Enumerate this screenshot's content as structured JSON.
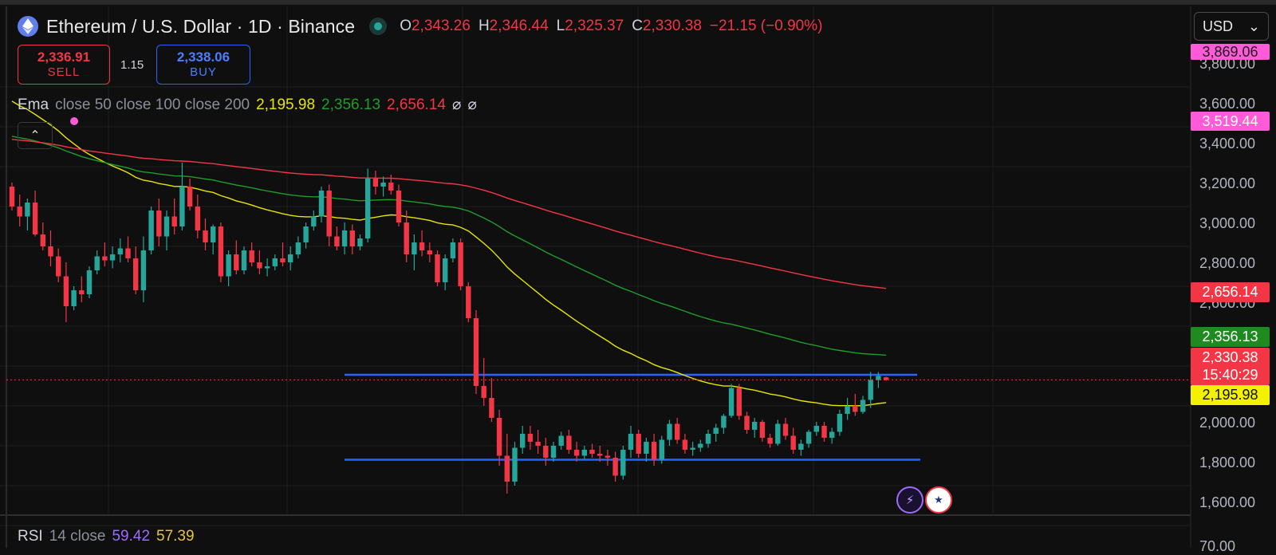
{
  "header": {
    "symbol_title": "Ethereum / U.S. Dollar · 1D · Binance",
    "ohlc": {
      "o_label": "O",
      "o_value": "2,343.26",
      "h_label": "H",
      "h_value": "2,346.44",
      "l_label": "L",
      "l_value": "2,325.37",
      "c_label": "C",
      "c_value": "2,330.38",
      "change": "−21.15 (−0.90%)"
    }
  },
  "trade": {
    "sell_price": "2,336.91",
    "sell_label": "SELL",
    "spread": "1.15",
    "buy_price": "2,338.06",
    "buy_label": "BUY"
  },
  "ema_legend": {
    "name": "Ema",
    "params": "close 50 close 100 close 200",
    "v50": "2,195.98",
    "v100": "2,356.13",
    "v200": "2,656.14",
    "symbol_a": "⌀",
    "symbol_b": "⌀"
  },
  "currency": {
    "selected": "USD",
    "arrow": "⌄"
  },
  "collapse_icon_glyph": "⌃",
  "price_axis": {
    "ticks": [
      "3,800.00",
      "3,600.00",
      "3,400.00",
      "3,200.00",
      "3,000.00",
      "2,800.00",
      "2,600.00",
      "2,000.00",
      "1,800.00",
      "1,600.00"
    ],
    "tags": {
      "high_alert": "3,869.06",
      "alert2": "3,519.44",
      "ema200": "2,656.14",
      "ema100": "2,356.13",
      "last_price": "2,330.38",
      "countdown": "15:40:29",
      "ema50": "2,195.98"
    },
    "rsi_tick_cut": "70.00"
  },
  "rsi_legend": {
    "name": "RSI",
    "params": "14 close",
    "v1": "59.42",
    "v2": "57.39"
  },
  "colors": {
    "up": "#26a69a",
    "down": "#f23645",
    "ema50": "#e6e600",
    "ema100": "#1f9d2a",
    "ema200": "#f23645",
    "level_lines": "#2962ff",
    "alert_tag": "#ff5ad7"
  },
  "icons": [
    "ethereum-icon",
    "market-status-icon",
    "chevron-up-icon",
    "chevron-down-icon",
    "ai-assistant-icon",
    "us-flag-icon"
  ],
  "chart_data": {
    "type": "candlestick",
    "ylim": [
      1500,
      3900
    ],
    "levels": [
      2356,
      1930
    ],
    "candles": [
      [
        3300,
        3320,
        3180,
        3200
      ],
      [
        3200,
        3260,
        3100,
        3150
      ],
      [
        3150,
        3240,
        3080,
        3220
      ],
      [
        3220,
        3280,
        3050,
        3060
      ],
      [
        3060,
        3120,
        2980,
        3000
      ],
      [
        3000,
        3080,
        2900,
        2950
      ],
      [
        2950,
        2990,
        2820,
        2850
      ],
      [
        2850,
        2920,
        2620,
        2700
      ],
      [
        2700,
        2800,
        2680,
        2780
      ],
      [
        2780,
        2850,
        2720,
        2760
      ],
      [
        2760,
        2900,
        2740,
        2880
      ],
      [
        2880,
        2980,
        2860,
        2950
      ],
      [
        2950,
        3020,
        2900,
        2930
      ],
      [
        2930,
        3000,
        2890,
        2960
      ],
      [
        2960,
        3040,
        2920,
        2990
      ],
      [
        2990,
        3050,
        2920,
        2940
      ],
      [
        2940,
        3000,
        2760,
        2780
      ],
      [
        2780,
        3050,
        2720,
        2980
      ],
      [
        2980,
        3200,
        2960,
        3180
      ],
      [
        3180,
        3240,
        3000,
        3050
      ],
      [
        3050,
        3180,
        2980,
        3150
      ],
      [
        3150,
        3240,
        3060,
        3100
      ],
      [
        3100,
        3420,
        3080,
        3300
      ],
      [
        3300,
        3340,
        3180,
        3200
      ],
      [
        3200,
        3260,
        3040,
        3080
      ],
      [
        3080,
        3140,
        2980,
        3020
      ],
      [
        3020,
        3110,
        2960,
        3100
      ],
      [
        3100,
        3120,
        2820,
        2850
      ],
      [
        2850,
        2980,
        2800,
        2960
      ],
      [
        2960,
        3030,
        2860,
        2880
      ],
      [
        2880,
        3000,
        2860,
        2980
      ],
      [
        2980,
        3020,
        2900,
        2920
      ],
      [
        2920,
        2980,
        2860,
        2890
      ],
      [
        2890,
        2940,
        2850,
        2900
      ],
      [
        2900,
        2960,
        2880,
        2940
      ],
      [
        2940,
        3020,
        2900,
        2920
      ],
      [
        2920,
        3000,
        2880,
        2960
      ],
      [
        2960,
        3050,
        2940,
        3020
      ],
      [
        3020,
        3120,
        2990,
        3100
      ],
      [
        3100,
        3180,
        3080,
        3150
      ],
      [
        3150,
        3300,
        3120,
        3280
      ],
      [
        3280,
        3310,
        3000,
        3050
      ],
      [
        3050,
        3100,
        2980,
        3000
      ],
      [
        3000,
        3120,
        2960,
        3080
      ],
      [
        3080,
        3110,
        2960,
        3000
      ],
      [
        3000,
        3060,
        2980,
        3040
      ],
      [
        3040,
        3390,
        3020,
        3340
      ],
      [
        3340,
        3380,
        3260,
        3300
      ],
      [
        3300,
        3350,
        3250,
        3320
      ],
      [
        3320,
        3360,
        3260,
        3280
      ],
      [
        3280,
        3310,
        3100,
        3120
      ],
      [
        3120,
        3180,
        2920,
        2960
      ],
      [
        2960,
        3060,
        2880,
        3020
      ],
      [
        3020,
        3080,
        2950,
        2980
      ],
      [
        2980,
        3020,
        2920,
        2960
      ],
      [
        2960,
        2980,
        2800,
        2820
      ],
      [
        2820,
        2960,
        2780,
        2940
      ],
      [
        2940,
        3040,
        2920,
        3020
      ],
      [
        3020,
        3040,
        2780,
        2800
      ],
      [
        2800,
        2820,
        2620,
        2640
      ],
      [
        2640,
        2680,
        2260,
        2300
      ],
      [
        2300,
        2440,
        2200,
        2240
      ],
      [
        2240,
        2340,
        2120,
        2140
      ],
      [
        2140,
        2180,
        1900,
        1950
      ],
      [
        1950,
        2060,
        1760,
        1820
      ],
      [
        1820,
        2020,
        1800,
        1990
      ],
      [
        1990,
        2100,
        1960,
        2060
      ],
      [
        2060,
        2100,
        1980,
        2020
      ],
      [
        2020,
        2080,
        1960,
        2000
      ],
      [
        2000,
        2040,
        1900,
        1940
      ],
      [
        1940,
        2020,
        1920,
        2000
      ],
      [
        2000,
        2070,
        1980,
        2050
      ],
      [
        2050,
        2080,
        1960,
        1980
      ],
      [
        1980,
        2020,
        1920,
        1950
      ],
      [
        1950,
        2000,
        1930,
        1980
      ],
      [
        1980,
        2010,
        1940,
        1960
      ],
      [
        1960,
        2000,
        1920,
        1950
      ],
      [
        1950,
        1980,
        1900,
        1940
      ],
      [
        1940,
        1970,
        1820,
        1850
      ],
      [
        1850,
        2000,
        1830,
        1980
      ],
      [
        1980,
        2100,
        1940,
        2060
      ],
      [
        2060,
        2080,
        1940,
        1960
      ],
      [
        1960,
        2040,
        1920,
        2020
      ],
      [
        2020,
        2060,
        1900,
        1930
      ],
      [
        1930,
        2050,
        1910,
        2030
      ],
      [
        2030,
        2130,
        2000,
        2110
      ],
      [
        2110,
        2140,
        2010,
        2030
      ],
      [
        2030,
        2060,
        1960,
        1980
      ],
      [
        1980,
        2020,
        1950,
        1990
      ],
      [
        1990,
        2030,
        1970,
        2010
      ],
      [
        2010,
        2080,
        1990,
        2060
      ],
      [
        2060,
        2110,
        2020,
        2090
      ],
      [
        2090,
        2160,
        2060,
        2150
      ],
      [
        2150,
        2310,
        2140,
        2290
      ],
      [
        2290,
        2310,
        2130,
        2150
      ],
      [
        2150,
        2170,
        2060,
        2080
      ],
      [
        2080,
        2140,
        2040,
        2120
      ],
      [
        2120,
        2130,
        2020,
        2040
      ],
      [
        2040,
        2060,
        1990,
        2010
      ],
      [
        2010,
        2130,
        2000,
        2110
      ],
      [
        2110,
        2140,
        2030,
        2050
      ],
      [
        2050,
        2090,
        1960,
        1980
      ],
      [
        1980,
        2030,
        1950,
        2010
      ],
      [
        2010,
        2080,
        1990,
        2070
      ],
      [
        2070,
        2120,
        2050,
        2100
      ],
      [
        2100,
        2120,
        2020,
        2040
      ],
      [
        2040,
        2090,
        2010,
        2070
      ],
      [
        2070,
        2180,
        2050,
        2160
      ],
      [
        2160,
        2240,
        2130,
        2200
      ],
      [
        2200,
        2260,
        2150,
        2170
      ],
      [
        2170,
        2250,
        2160,
        2230
      ],
      [
        2230,
        2370,
        2190,
        2330
      ],
      [
        2330,
        2370,
        2290,
        2350
      ],
      [
        2343.26,
        2346.44,
        2325.37,
        2330.38
      ]
    ]
  }
}
